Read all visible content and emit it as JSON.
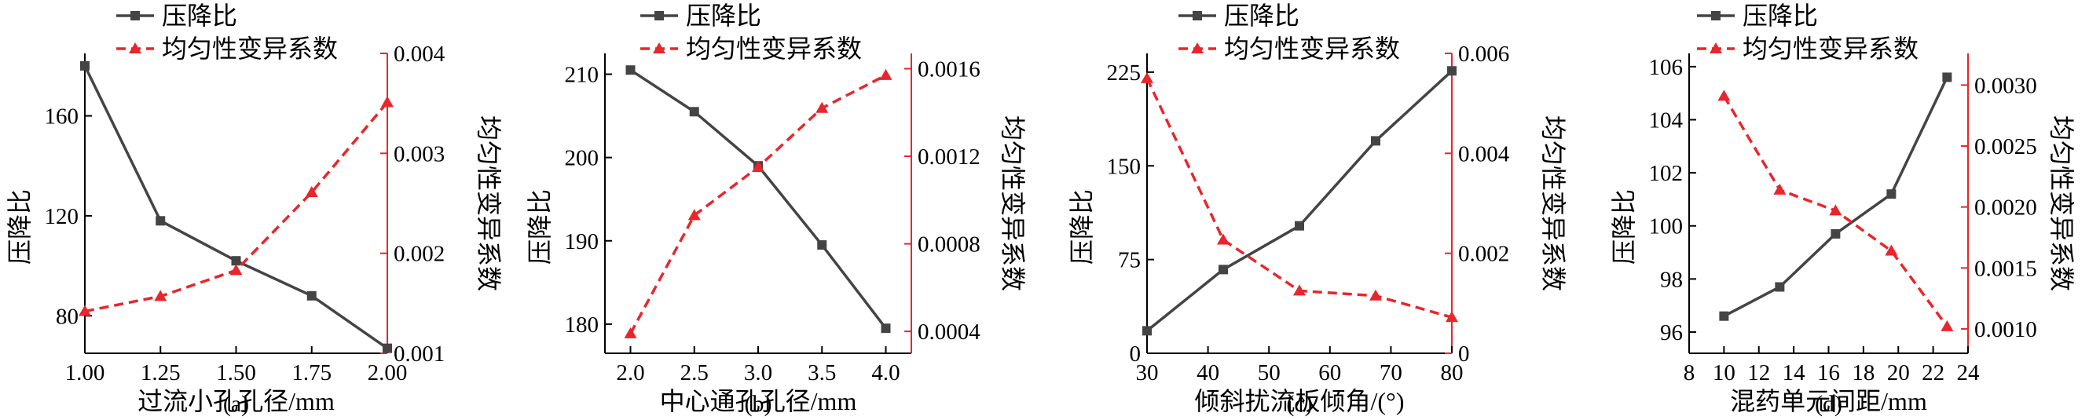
{
  "colors": {
    "pressure": "#444444",
    "uniformity": "#e8262b",
    "axis": "#000000"
  },
  "legend": {
    "pressure_label": "压降比",
    "uniformity_label": "均匀性变异系数"
  },
  "chart_data": [
    {
      "type": "line",
      "panel_label": "(a)",
      "xlabel": "过流小孔孔径/mm",
      "ylabel_left": "压降比",
      "ylabel_right": "均匀性变异系数",
      "xlim": [
        1.0,
        2.0
      ],
      "xticks": [
        "1.00",
        "1.25",
        "1.50",
        "1.75",
        "2.00"
      ],
      "ylim_left": [
        65,
        185
      ],
      "yticks_left": [
        "80",
        "120",
        "160"
      ],
      "ylim_right": [
        0.001,
        0.004
      ],
      "yticks_right": [
        "0.001",
        "0.002",
        "0.003",
        "0.004"
      ],
      "series": [
        {
          "name": "压降比",
          "axis": "left",
          "marker": "square",
          "line": "solid",
          "x": [
            1.0,
            1.25,
            1.5,
            1.75,
            2.0
          ],
          "y": [
            180,
            118,
            102,
            88,
            67
          ]
        },
        {
          "name": "均匀性变异系数",
          "axis": "right",
          "marker": "triangle",
          "line": "dashed",
          "x": [
            1.0,
            1.25,
            1.5,
            1.75,
            2.0
          ],
          "y": [
            0.00142,
            0.00157,
            0.00183,
            0.00261,
            0.00351
          ]
        }
      ]
    },
    {
      "type": "line",
      "panel_label": "(b)",
      "xlabel": "中心通孔孔径/mm",
      "ylabel_left": "压降比",
      "ylabel_right": "均匀性变异系数",
      "xlim": [
        1.8,
        4.2
      ],
      "xticks": [
        "2.0",
        "2.5",
        "3.0",
        "3.5",
        "4.0"
      ],
      "ylim_left": [
        176.5,
        212.5
      ],
      "yticks_left": [
        "180",
        "190",
        "200",
        "210"
      ],
      "ylim_right": [
        0.0003,
        0.00167
      ],
      "yticks_right": [
        "0.0004",
        "0.0008",
        "0.0012",
        "0.0016"
      ],
      "series": [
        {
          "name": "压降比",
          "axis": "left",
          "marker": "square",
          "line": "solid",
          "x": [
            2.0,
            2.5,
            3.0,
            3.5,
            4.0
          ],
          "y": [
            210.5,
            205.5,
            199,
            189.5,
            179.5
          ]
        },
        {
          "name": "均匀性变异系数",
          "axis": "right",
          "marker": "triangle",
          "line": "dashed",
          "x": [
            2.0,
            2.5,
            3.0,
            3.5,
            4.0
          ],
          "y": [
            0.00039,
            0.00093,
            0.00115,
            0.00142,
            0.00157
          ]
        }
      ]
    },
    {
      "type": "line",
      "panel_label": "(c)",
      "xlabel": "倾斜扰流板倾角/(°)",
      "ylabel_left": "压降比",
      "ylabel_right": "均匀性变异系数",
      "xlim": [
        30,
        80
      ],
      "xticks": [
        "30",
        "40",
        "50",
        "60",
        "70",
        "80"
      ],
      "ylim_left": [
        0,
        240
      ],
      "yticks_left": [
        "0",
        "75",
        "150",
        "225"
      ],
      "ylim_right": [
        0,
        0.006
      ],
      "yticks_right": [
        "0",
        "0.002",
        "0.004",
        "0.006"
      ],
      "series": [
        {
          "name": "压降比",
          "axis": "left",
          "marker": "square",
          "line": "solid",
          "x": [
            30,
            42.5,
            55,
            67.5,
            80
          ],
          "y": [
            18,
            67,
            102,
            170,
            226
          ]
        },
        {
          "name": "均匀性变异系数",
          "axis": "right",
          "marker": "triangle",
          "line": "dashed",
          "x": [
            30,
            42.5,
            55,
            67.5,
            80
          ],
          "y": [
            0.0055,
            0.00227,
            0.00125,
            0.00115,
            0.00072
          ]
        }
      ]
    },
    {
      "type": "line",
      "panel_label": "(d)",
      "xlabel": "混药单元间距/mm",
      "ylabel_left": "压降比",
      "ylabel_right": "均匀性变异系数",
      "xlim": [
        8,
        24
      ],
      "xticks": [
        "8",
        "10",
        "12",
        "14",
        "16",
        "18",
        "20",
        "22",
        "24"
      ],
      "ylim_left": [
        95.2,
        106.5
      ],
      "yticks_left": [
        "96",
        "98",
        "100",
        "102",
        "104",
        "106"
      ],
      "ylim_right": [
        0.0008,
        0.00326
      ],
      "yticks_right": [
        "0.0010",
        "0.0015",
        "0.0020",
        "0.0025",
        "0.0030"
      ],
      "series": [
        {
          "name": "压降比",
          "axis": "left",
          "marker": "square",
          "line": "solid",
          "x": [
            10,
            13.2,
            16.4,
            19.6,
            22.8
          ],
          "y": [
            96.6,
            97.7,
            99.7,
            101.2,
            105.6
          ]
        },
        {
          "name": "均匀性变异系数",
          "axis": "right",
          "marker": "triangle",
          "line": "dashed",
          "x": [
            10,
            13.2,
            16.4,
            19.6,
            22.8
          ],
          "y": [
            0.00291,
            0.00214,
            0.00197,
            0.00164,
            0.00102
          ]
        }
      ]
    }
  ]
}
